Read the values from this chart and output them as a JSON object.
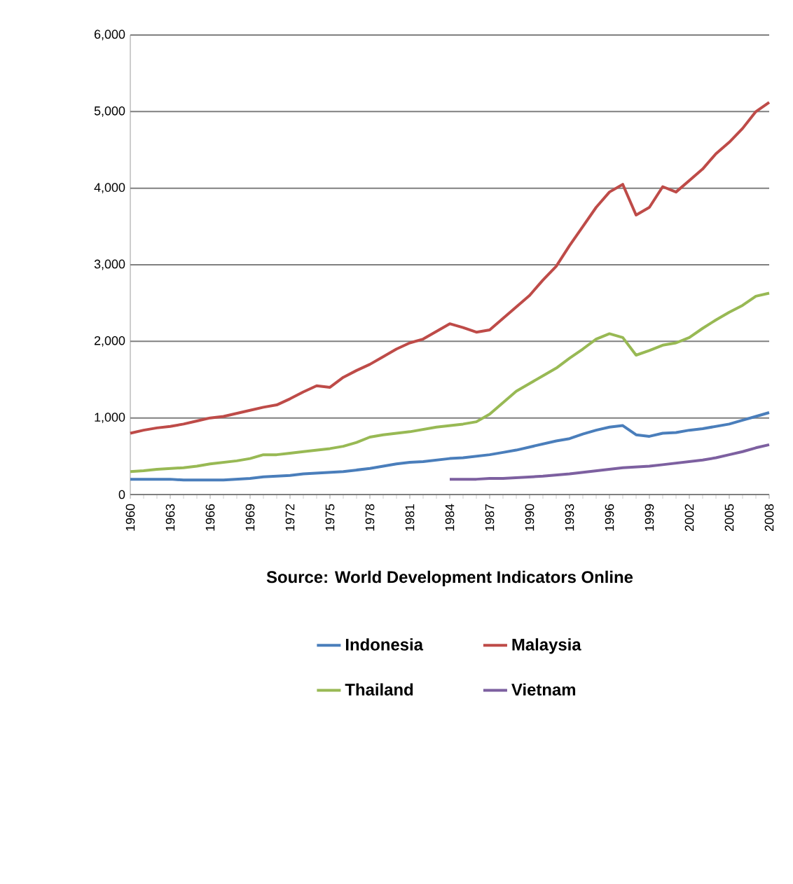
{
  "chart_data": {
    "type": "line",
    "categories": [
      "1960",
      null,
      null,
      "1963",
      null,
      null,
      "1966",
      null,
      null,
      "1969",
      null,
      null,
      "1972",
      null,
      null,
      "1975",
      null,
      null,
      "1978",
      null,
      null,
      "1981",
      null,
      null,
      "1984",
      null,
      null,
      "1987",
      null,
      null,
      "1990",
      null,
      null,
      "1993",
      null,
      null,
      "1996",
      null,
      null,
      "1999",
      null,
      null,
      "2002",
      null,
      null,
      "2005",
      null,
      null,
      "2008"
    ],
    "series": [
      {
        "name": "Indonesia",
        "color": "#4a7ebb",
        "values": [
          200,
          200,
          200,
          200,
          190,
          190,
          190,
          190,
          200,
          210,
          230,
          240,
          250,
          270,
          280,
          290,
          300,
          320,
          340,
          370,
          400,
          420,
          430,
          450,
          470,
          480,
          500,
          520,
          550,
          580,
          620,
          660,
          700,
          730,
          790,
          840,
          880,
          900,
          780,
          760,
          800,
          810,
          840,
          860,
          890,
          920,
          970,
          1020,
          1070
        ]
      },
      {
        "name": "Malaysia",
        "color": "#be4b48",
        "values": [
          800,
          840,
          870,
          890,
          920,
          960,
          1000,
          1020,
          1060,
          1100,
          1140,
          1170,
          1250,
          1340,
          1420,
          1400,
          1530,
          1620,
          1700,
          1800,
          1900,
          1980,
          2030,
          2130,
          2230,
          2180,
          2120,
          2150,
          2300,
          2450,
          2600,
          2800,
          2980,
          3250,
          3500,
          3750,
          3950,
          4050,
          3650,
          3750,
          4020,
          3950,
          4100,
          4250,
          4450,
          4600,
          4780,
          5000,
          5120
        ]
      },
      {
        "name": "Thailand",
        "color": "#98b954",
        "values": [
          300,
          310,
          330,
          340,
          350,
          370,
          400,
          420,
          440,
          470,
          520,
          520,
          540,
          560,
          580,
          600,
          630,
          680,
          750,
          780,
          800,
          820,
          850,
          880,
          900,
          920,
          950,
          1050,
          1200,
          1350,
          1450,
          1550,
          1650,
          1780,
          1900,
          2030,
          2100,
          2050,
          1820,
          1880,
          1950,
          1980,
          2050,
          2170,
          2280,
          2380,
          2470,
          2590,
          2630
        ]
      },
      {
        "name": "Vietnam",
        "color": "#7d60a0",
        "values": [
          null,
          null,
          null,
          null,
          null,
          null,
          null,
          null,
          null,
          null,
          null,
          null,
          null,
          null,
          null,
          null,
          null,
          null,
          null,
          null,
          null,
          null,
          null,
          null,
          200,
          200,
          200,
          210,
          210,
          220,
          230,
          240,
          255,
          270,
          290,
          310,
          330,
          350,
          360,
          370,
          390,
          410,
          430,
          450,
          480,
          520,
          560,
          610,
          650
        ]
      }
    ],
    "ylim": [
      0,
      6000
    ],
    "yticks": [
      0,
      {
        "value": 1000,
        "label": "1,000"
      },
      {
        "value": 2000,
        "label": "2,000"
      },
      {
        "value": 3000,
        "label": "3,000"
      },
      {
        "value": 4000,
        "label": "4,000"
      },
      {
        "value": 5000,
        "label": "5,000"
      },
      {
        "value": 6000,
        "label": "6,000"
      }
    ],
    "grid": "y",
    "legend": "bottom",
    "annotations": [
      "Source: World Development Indicators Online"
    ]
  }
}
